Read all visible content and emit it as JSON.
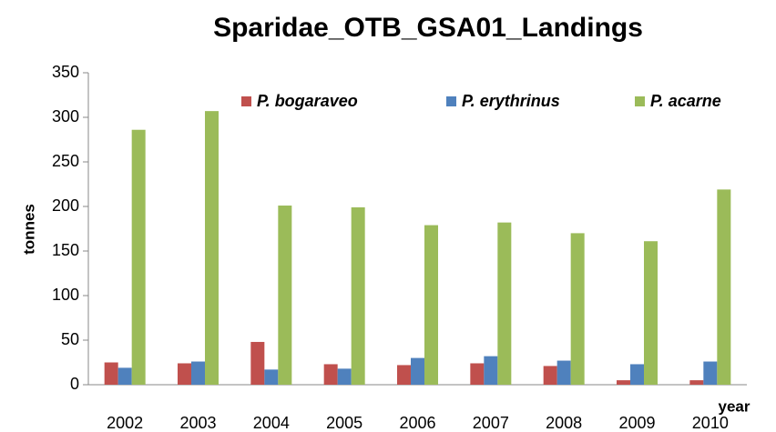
{
  "chart_data": {
    "type": "bar",
    "title": "Sparidae_OTB_GSA01_Landings",
    "x_label": "year",
    "y_label": "tonnes",
    "categories": [
      "2002",
      "2003",
      "2004",
      "2005",
      "2006",
      "2007",
      "2008",
      "2009",
      "2010"
    ],
    "series": [
      {
        "name": "P. bogaraveo",
        "color": "#c0504d",
        "values": [
          25,
          24,
          48,
          23,
          22,
          24,
          21,
          5,
          5
        ]
      },
      {
        "name": "P. erythrinus",
        "color": "#4f81bd",
        "values": [
          19,
          26,
          17,
          18,
          30,
          32,
          27,
          23,
          26
        ]
      },
      {
        "name": "P. acarne",
        "color": "#9bbb59",
        "values": [
          286,
          307,
          201,
          199,
          179,
          182,
          170,
          161,
          219
        ]
      }
    ],
    "ylim": [
      0,
      350
    ],
    "yticks": [
      0,
      50,
      100,
      150,
      200,
      250,
      300,
      350
    ],
    "legend": "top"
  }
}
